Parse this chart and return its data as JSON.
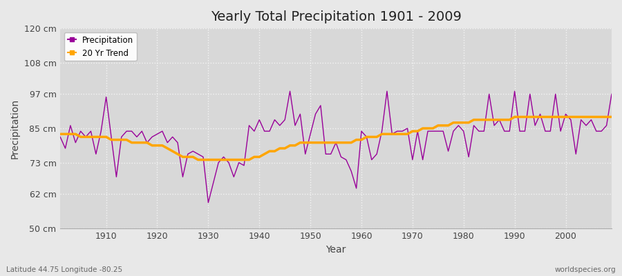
{
  "title": "Yearly Total Precipitation 1901 - 2009",
  "xlabel": "Year",
  "ylabel": "Precipitation",
  "bottom_left": "Latitude 44.75 Longitude -80.25",
  "bottom_right": "worldspecies.org",
  "years": [
    1901,
    1902,
    1903,
    1904,
    1905,
    1906,
    1907,
    1908,
    1909,
    1910,
    1911,
    1912,
    1913,
    1914,
    1915,
    1916,
    1917,
    1918,
    1919,
    1920,
    1921,
    1922,
    1923,
    1924,
    1925,
    1926,
    1927,
    1928,
    1929,
    1930,
    1931,
    1932,
    1933,
    1934,
    1935,
    1936,
    1937,
    1938,
    1939,
    1940,
    1941,
    1942,
    1943,
    1944,
    1945,
    1946,
    1947,
    1948,
    1949,
    1950,
    1951,
    1952,
    1953,
    1954,
    1955,
    1956,
    1957,
    1958,
    1959,
    1960,
    1961,
    1962,
    1963,
    1964,
    1965,
    1966,
    1967,
    1968,
    1969,
    1970,
    1971,
    1972,
    1973,
    1974,
    1975,
    1976,
    1977,
    1978,
    1979,
    1980,
    1981,
    1982,
    1983,
    1984,
    1985,
    1986,
    1987,
    1988,
    1989,
    1990,
    1991,
    1992,
    1993,
    1994,
    1995,
    1996,
    1997,
    1998,
    1999,
    2000,
    2001,
    2002,
    2003,
    2004,
    2005,
    2006,
    2007,
    2008,
    2009
  ],
  "precip": [
    82,
    78,
    86,
    80,
    84,
    82,
    84,
    76,
    84,
    96,
    82,
    68,
    82,
    84,
    84,
    82,
    84,
    80,
    82,
    83,
    84,
    80,
    82,
    80,
    68,
    76,
    77,
    76,
    75,
    59,
    66,
    73,
    75,
    73,
    68,
    73,
    72,
    86,
    84,
    88,
    84,
    84,
    88,
    86,
    88,
    98,
    86,
    90,
    76,
    83,
    90,
    93,
    76,
    76,
    80,
    75,
    74,
    70,
    64,
    84,
    82,
    74,
    76,
    84,
    98,
    83,
    84,
    84,
    85,
    74,
    84,
    74,
    84,
    84,
    84,
    84,
    77,
    84,
    86,
    84,
    75,
    86,
    84,
    84,
    97,
    86,
    88,
    84,
    84,
    98,
    84,
    84,
    97,
    86,
    90,
    84,
    84,
    97,
    84,
    90,
    88,
    76,
    88,
    86,
    88,
    84,
    84,
    86,
    97
  ],
  "trend": [
    83,
    83,
    83,
    83,
    82,
    82,
    82,
    82,
    82,
    82,
    81,
    81,
    81,
    81,
    80,
    80,
    80,
    80,
    79,
    79,
    79,
    78,
    77,
    76,
    75,
    75,
    75,
    74,
    74,
    74,
    74,
    74,
    74,
    74,
    74,
    74,
    74,
    74,
    75,
    75,
    76,
    77,
    77,
    78,
    78,
    79,
    79,
    80,
    80,
    80,
    80,
    80,
    80,
    80,
    80,
    80,
    80,
    80,
    81,
    81,
    82,
    82,
    82,
    83,
    83,
    83,
    83,
    83,
    83,
    84,
    84,
    85,
    85,
    85,
    86,
    86,
    86,
    87,
    87,
    87,
    87,
    88,
    88,
    88,
    88,
    88,
    88,
    88,
    88,
    89,
    89,
    89,
    89,
    89,
    89,
    89,
    89,
    89,
    89,
    89,
    89,
    89,
    89,
    89,
    89,
    89,
    89,
    89,
    89
  ],
  "precip_color": "#990099",
  "trend_color": "#FFA500",
  "bg_color": "#e8e8e8",
  "plot_bg_color": "#d8d8d8",
  "grid_color": "#f5f5f5",
  "ytick_labels": [
    "50 cm",
    "62 cm",
    "73 cm",
    "85 cm",
    "97 cm",
    "108 cm",
    "120 cm"
  ],
  "ytick_values": [
    50,
    62,
    73,
    85,
    97,
    108,
    120
  ],
  "ylim": [
    50,
    120
  ],
  "xlim": [
    1901,
    2009
  ]
}
